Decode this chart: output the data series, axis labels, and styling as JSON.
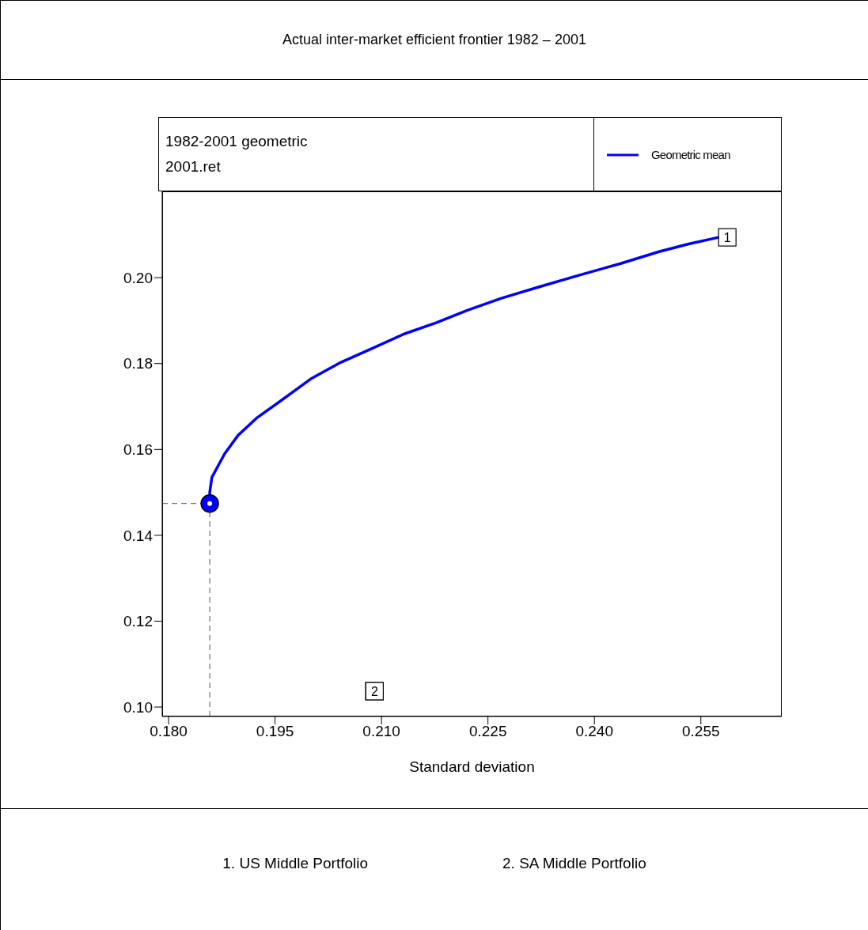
{
  "chart_data": {
    "type": "line",
    "title": "Actual inter-market efficient frontier 1982 – 2001",
    "subtitle": "1982-2001 geometric\n2001.ret",
    "xlabel": "Standard deviation",
    "series": [
      {
        "name": "Geometric mean",
        "color": "#0000ff",
        "x": [
          0.1858,
          0.1858,
          0.1861,
          0.1879,
          0.1898,
          0.1924,
          0.1957,
          0.2002,
          0.2043,
          0.2088,
          0.2132,
          0.2177,
          0.2221,
          0.2269,
          0.2325,
          0.2381,
          0.2437,
          0.2492,
          0.2534,
          0.2575
        ],
        "values": [
          0.1474,
          0.15,
          0.1535,
          0.159,
          0.1633,
          0.1673,
          0.1712,
          0.1766,
          0.1803,
          0.1836,
          0.1869,
          0.1895,
          0.1924,
          0.1952,
          0.198,
          0.2007,
          0.2033,
          0.2061,
          0.2079,
          0.2094
        ]
      },
      {
        "color": "#555555",
        "line_style": "dashed",
        "x": [
          0.1791,
          0.1858
        ],
        "values": [
          0.1474,
          0.1474
        ]
      },
      {
        "color": "#555555",
        "line_style": "dashed",
        "x": [
          0.1858,
          0.1858
        ],
        "values": [
          0.0978,
          0.1474
        ]
      },
      {
        "type": "scatter",
        "color": "#0000ff",
        "marker": "circle",
        "x": [
          0.1858
        ],
        "values": [
          0.1474
        ]
      },
      {
        "type": "scatter",
        "color": "#ffffff",
        "marker": "square",
        "x": [
          0.209
        ],
        "values": [
          0.1037
        ]
      }
    ],
    "xlim": [
      0.1791,
      0.2664
    ],
    "ylim": [
      0.0978,
      0.2201
    ],
    "xticks": [
      {
        "value": 0.18,
        "label": "0.180"
      },
      {
        "value": 0.195,
        "label": "0.195"
      },
      {
        "value": 0.21,
        "label": "0.210"
      },
      {
        "value": 0.225,
        "label": "0.225"
      },
      {
        "value": 0.24,
        "label": "0.240"
      },
      {
        "value": 0.255,
        "label": "0.255"
      }
    ],
    "yticks": [
      {
        "value": 0.1,
        "label": "0.10"
      },
      {
        "value": 0.12,
        "label": "0.12"
      },
      {
        "value": 0.14,
        "label": "0.14"
      },
      {
        "value": 0.16,
        "label": "0.16"
      },
      {
        "value": 0.18,
        "label": "0.18"
      },
      {
        "value": 0.2,
        "label": "0.20"
      }
    ],
    "annotations": [
      {
        "text": "1",
        "x": 0.2575,
        "y": 0.2094
      },
      {
        "text": "2",
        "x": 0.2078,
        "y": 0.1037
      },
      "1. US Middle Portfolio",
      "2. SA Middle Portfolio"
    ],
    "legend": "top right",
    "grid": false,
    "line_style": "solid"
  }
}
